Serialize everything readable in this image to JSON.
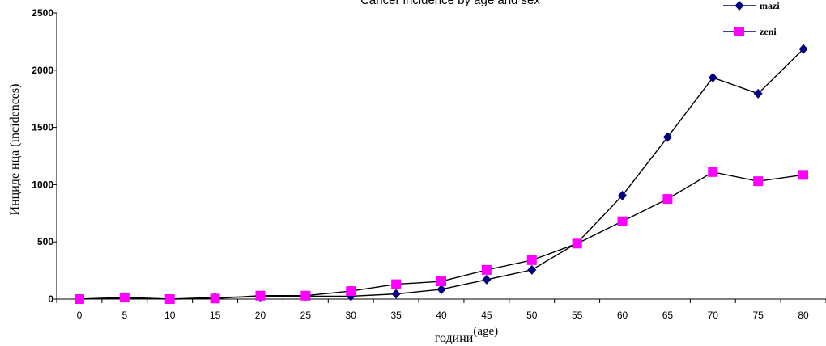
{
  "chart_data": {
    "type": "line",
    "title": "Cancer incidence by age and sex",
    "xlabel_main": "години",
    "xlabel_sup": "(age)",
    "ylabel": "Инциде нца  (incidences)",
    "categories": [
      "0",
      "5",
      "10",
      "15",
      "20",
      "25",
      "30",
      "35",
      "40",
      "45",
      "50",
      "55",
      "60",
      "65",
      "70",
      "75",
      "80"
    ],
    "yticks": [
      "0",
      "500",
      "1000",
      "1500",
      "2000",
      "2500"
    ],
    "ylim": [
      0,
      2500
    ],
    "legend_position": "top-right",
    "grid": false,
    "series": [
      {
        "name": "mazi",
        "color": "#000080",
        "marker": "diamond",
        "values": [
          0,
          10,
          0,
          15,
          20,
          25,
          25,
          45,
          85,
          170,
          255,
          490,
          905,
          1415,
          1935,
          1795,
          2185
        ]
      },
      {
        "name": "zeni",
        "color": "#ff00ff",
        "marker": "square",
        "values": [
          0,
          15,
          0,
          5,
          30,
          30,
          70,
          130,
          155,
          255,
          340,
          485,
          680,
          875,
          1110,
          1030,
          1085
        ]
      }
    ]
  }
}
